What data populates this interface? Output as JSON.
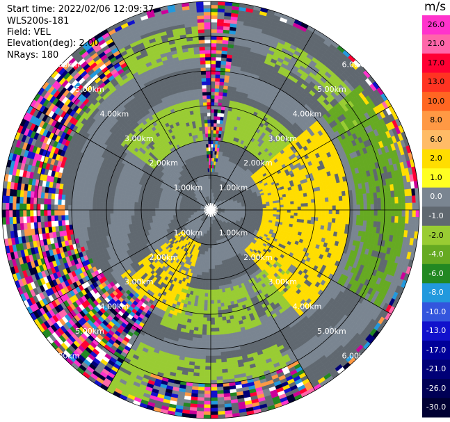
{
  "header": {
    "start_time": "Start time: 2022/02/06 12:09:37",
    "instrument": "WLS200s-181",
    "field": "Field: VEL",
    "elevation": "Elevation(deg): 2.00",
    "nrays": "NRays: 180"
  },
  "colorbar": {
    "unit": "m/s",
    "ticks": [
      "26.0",
      "21.0",
      "17.0",
      "13.0",
      "10.0",
      "8.0",
      "6.0",
      "2.0",
      "1.0",
      "0.0",
      "-1.0",
      "-2.0",
      "-4.0",
      "-6.0",
      "-8.0",
      "-10.0",
      "-13.0",
      "-17.0",
      "-21.0",
      "-26.0",
      "-30.0"
    ],
    "colors": [
      "#ff33cc",
      "#ff66aa",
      "#ff0033",
      "#ff3322",
      "#ff6622",
      "#ff9944",
      "#ffbb66",
      "#ffdd00",
      "#ffff22",
      "#7a8591",
      "#606870",
      "#99cc33",
      "#66aa22",
      "#228822",
      "#2299dd",
      "#3355dd",
      "#1111cc",
      "#000099",
      "#000077",
      "#000055",
      "#000033"
    ]
  },
  "chart_data": {
    "type": "polar-ppi",
    "field": "VEL",
    "units": "m/s",
    "range_rings_km": [
      1,
      2,
      3,
      4,
      5,
      6
    ],
    "range_ring_labels": [
      "1.00km",
      "2.00km",
      "3.00km",
      "4.00km",
      "5.00km",
      "6.00km"
    ],
    "azimuth_spokes_deg": [
      0,
      30,
      60,
      90,
      120,
      150,
      180,
      210,
      240,
      270,
      300,
      330
    ],
    "max_range_km": 6.0,
    "elevation_deg": 2.0,
    "nrays": 180,
    "clim": [
      -30.0,
      26.0
    ]
  }
}
